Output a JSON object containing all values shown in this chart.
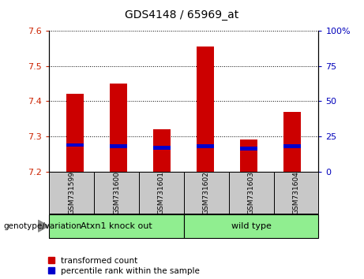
{
  "title": "GDS4148 / 65969_at",
  "samples": [
    "GSM731599",
    "GSM731600",
    "GSM731601",
    "GSM731602",
    "GSM731603",
    "GSM731604"
  ],
  "red_values": [
    7.42,
    7.45,
    7.32,
    7.555,
    7.29,
    7.37
  ],
  "blue_values": [
    7.275,
    7.272,
    7.268,
    7.272,
    7.265,
    7.272
  ],
  "ymin": 7.2,
  "ymax": 7.6,
  "yticks": [
    7.2,
    7.3,
    7.4,
    7.5,
    7.6
  ],
  "right_ytick_labels": [
    "0",
    "25",
    "50",
    "75",
    "100%"
  ],
  "right_ytick_vals": [
    0,
    25,
    50,
    75,
    100
  ],
  "bar_width": 0.4,
  "red_color": "#CC0000",
  "blue_color": "#0000CC",
  "left_tick_color": "#CC2200",
  "right_tick_color": "#0000BB",
  "legend_red_label": "transformed count",
  "legend_blue_label": "percentile rank within the sample",
  "genotype_label": "genotype/variation",
  "group_label_1": "Atxn1 knock out",
  "group_label_2": "wild type",
  "group_color": "#90EE90",
  "gray_color": "#C8C8C8"
}
